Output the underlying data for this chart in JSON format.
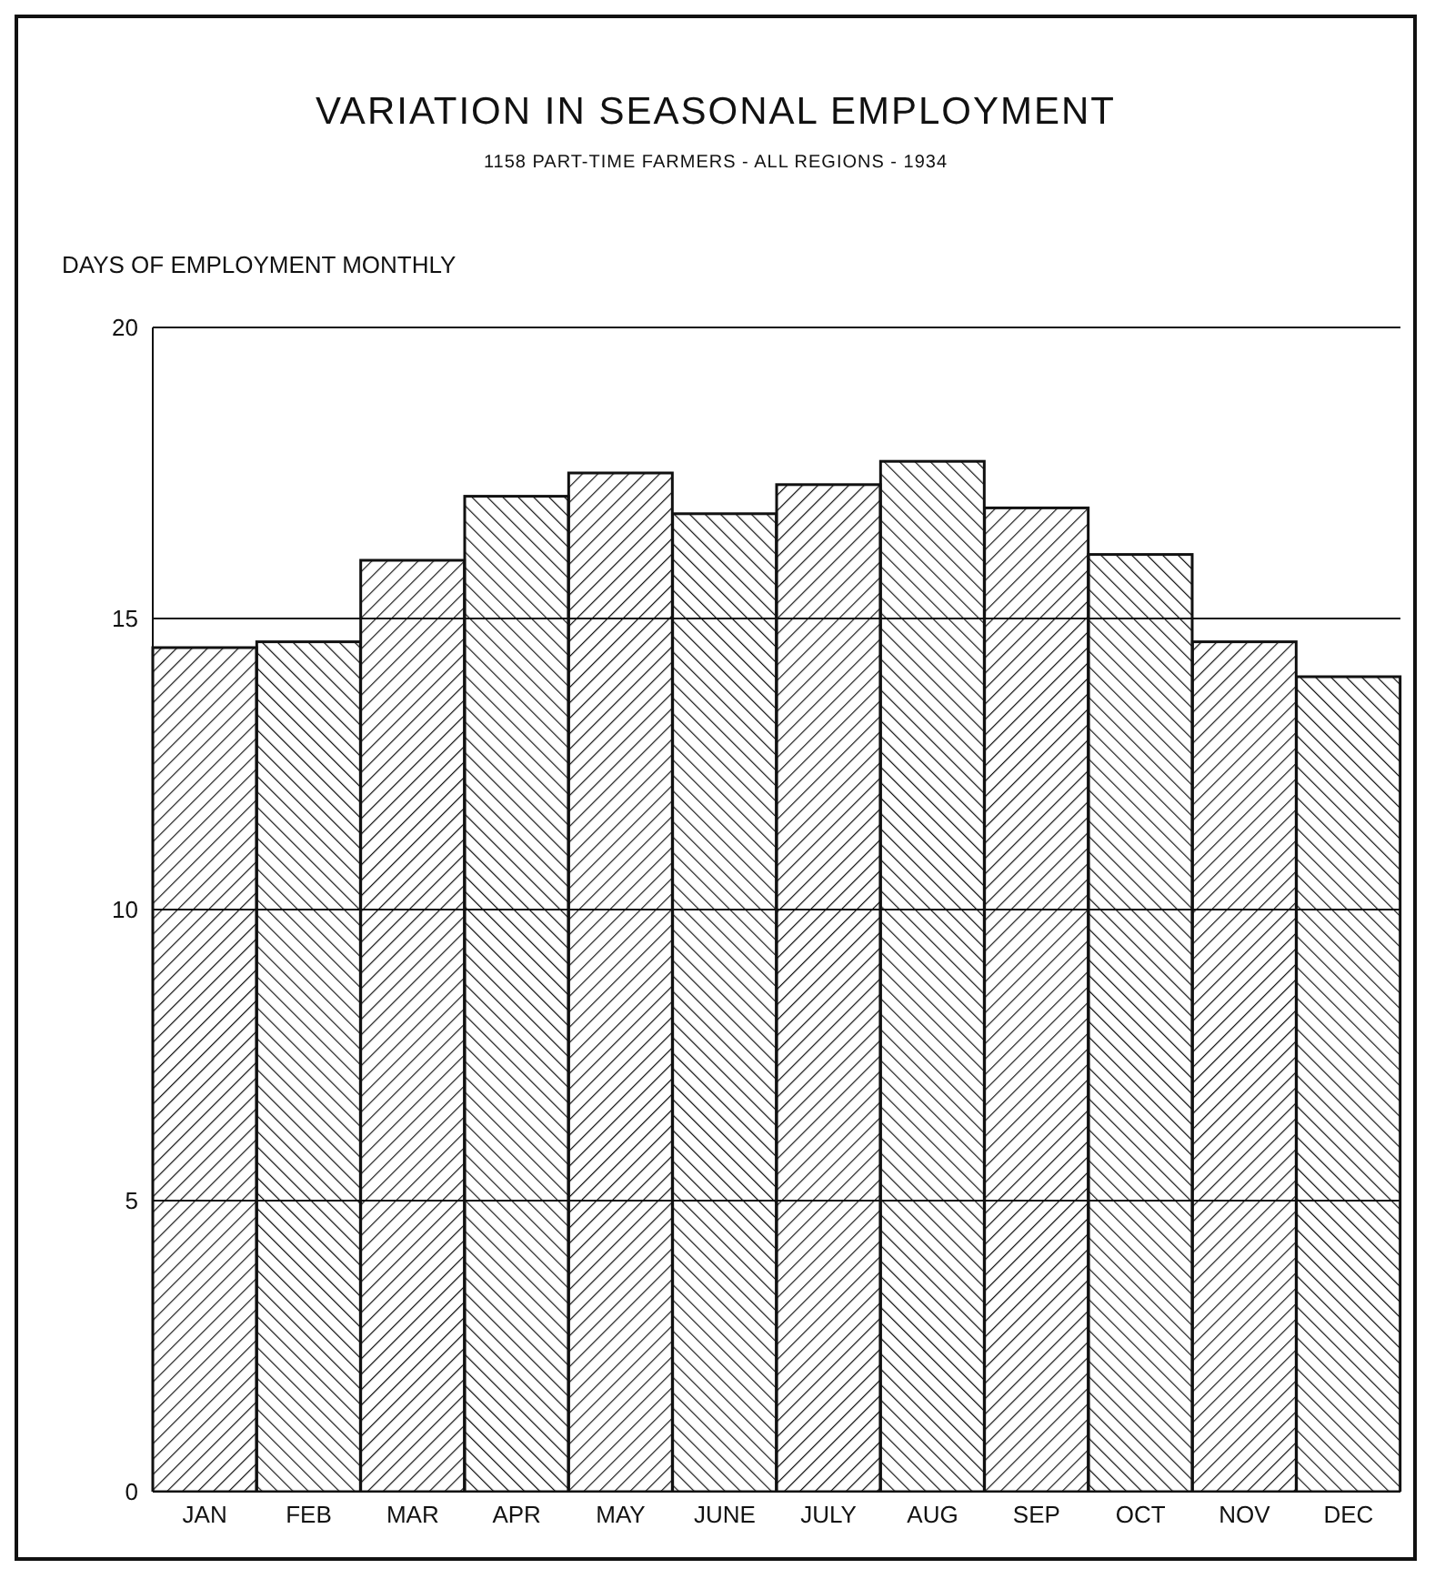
{
  "chart_data": {
    "type": "bar",
    "title": "VARIATION IN SEASONAL EMPLOYMENT",
    "subtitle": "1158 PART-TIME FARMERS - ALL REGIONS - 1934",
    "ylabel": "DAYS OF EMPLOYMENT MONTHLY",
    "categories": [
      "JAN",
      "FEB",
      "MAR",
      "APR",
      "MAY",
      "JUNE",
      "JULY",
      "AUG",
      "SEP",
      "OCT",
      "NOV",
      "DEC"
    ],
    "values": [
      14.5,
      14.6,
      16.0,
      17.1,
      17.5,
      16.8,
      17.3,
      17.7,
      16.9,
      16.1,
      14.6,
      14.0
    ],
    "color": "#111111",
    "ylim": [
      0,
      20
    ],
    "yticks": [
      0,
      5,
      10,
      15,
      20
    ],
    "grid": "y"
  }
}
